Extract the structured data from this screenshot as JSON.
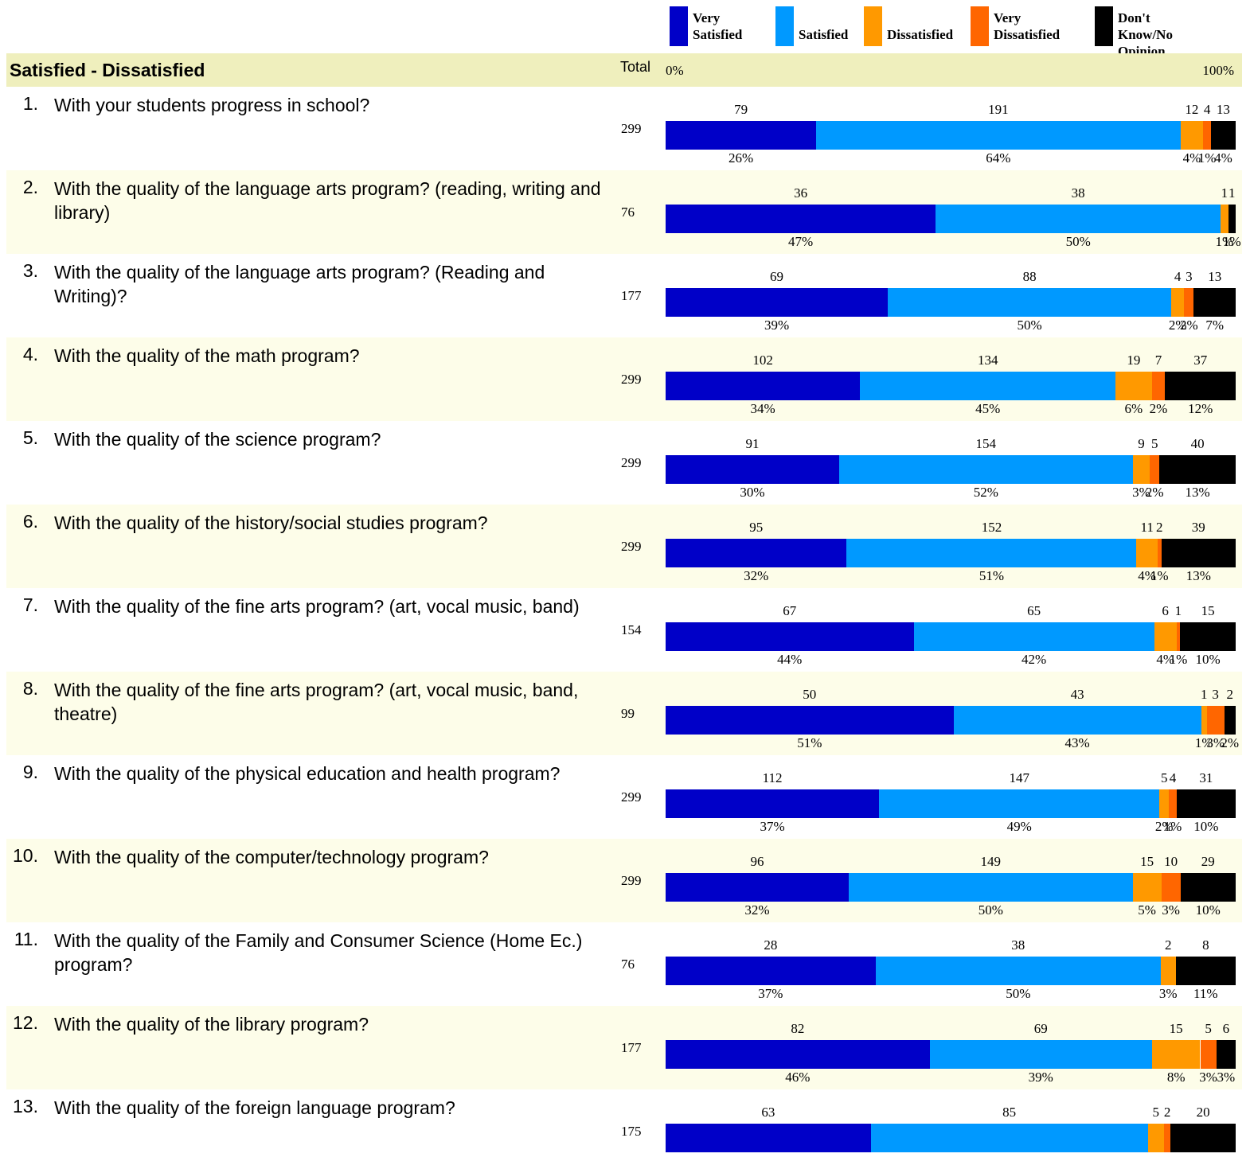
{
  "legend": [
    {
      "label": "Very\nSatisfied",
      "color": "#0000c8"
    },
    {
      "label": "Satisfied",
      "color": "#0099ff"
    },
    {
      "label": "Dissatisfied",
      "color": "#ff9900"
    },
    {
      "label": "Very\nDissatisfied",
      "color": "#ff6600"
    },
    {
      "label": "Don't Know/No\nOpinion",
      "color": "#000000"
    }
  ],
  "header": {
    "section_title": "Satisfied - Dissatisfied",
    "total_label": "Total",
    "axis_min": "0%",
    "axis_max": "100%"
  },
  "chart_data": {
    "type": "bar",
    "orientation": "horizontal",
    "stacked": "percent",
    "title": "Satisfied - Dissatisfied",
    "xlim": [
      0,
      100
    ],
    "series": [
      {
        "name": "Very Satisfied",
        "color": "#0000c8"
      },
      {
        "name": "Satisfied",
        "color": "#0099ff"
      },
      {
        "name": "Dissatisfied",
        "color": "#ff9900"
      },
      {
        "name": "Very Dissatisfied",
        "color": "#ff6600"
      },
      {
        "name": "Don't Know/No Opinion",
        "color": "#000000"
      }
    ],
    "rows": [
      {
        "num": "1.",
        "question": "With your students progress in school?",
        "total": "299",
        "counts": [
          79,
          191,
          12,
          4,
          13
        ],
        "percents": [
          "26%",
          "64%",
          "4%",
          "1%",
          "4%"
        ]
      },
      {
        "num": "2.",
        "question": "With the quality of the language arts program? (reading, writing and library)",
        "total": "76",
        "counts": [
          36,
          38,
          1,
          0,
          1
        ],
        "percents": [
          "47%",
          "50%",
          "1%",
          "",
          "1%"
        ]
      },
      {
        "num": "3.",
        "question": "With the quality of the language arts program? (Reading and Writing)?",
        "total": "177",
        "counts": [
          69,
          88,
          4,
          3,
          13
        ],
        "percents": [
          "39%",
          "50%",
          "2%",
          "2%",
          "7%"
        ]
      },
      {
        "num": "4.",
        "question": "With the quality of the math program?",
        "total": "299",
        "counts": [
          102,
          134,
          19,
          7,
          37
        ],
        "percents": [
          "34%",
          "45%",
          "6%",
          "2%",
          "12%"
        ]
      },
      {
        "num": "5.",
        "question": "With the quality of the science program?",
        "total": "299",
        "counts": [
          91,
          154,
          9,
          5,
          40
        ],
        "percents": [
          "30%",
          "52%",
          "3%",
          "2%",
          "13%"
        ]
      },
      {
        "num": "6.",
        "question": "With the quality of the history/social studies program?",
        "total": "299",
        "counts": [
          95,
          152,
          11,
          2,
          39
        ],
        "percents": [
          "32%",
          "51%",
          "4%",
          "1%",
          "13%"
        ]
      },
      {
        "num": "7.",
        "question": "With the quality of the fine arts program? (art, vocal music, band)",
        "total": "154",
        "counts": [
          67,
          65,
          6,
          1,
          15
        ],
        "percents": [
          "44%",
          "42%",
          "4%",
          "1%",
          "10%"
        ]
      },
      {
        "num": "8.",
        "question": "With the quality of the fine arts program? (art, vocal music, band, theatre)",
        "total": "99",
        "counts": [
          50,
          43,
          1,
          3,
          2
        ],
        "percents": [
          "51%",
          "43%",
          "1%",
          "3%",
          "2%"
        ]
      },
      {
        "num": "9.",
        "question": "With the quality of the physical education and health program?",
        "total": "299",
        "counts": [
          112,
          147,
          5,
          4,
          31
        ],
        "percents": [
          "37%",
          "49%",
          "2%",
          "1%",
          "10%"
        ]
      },
      {
        "num": "10.",
        "question": "With the quality of the computer/technology program?",
        "total": "299",
        "counts": [
          96,
          149,
          15,
          10,
          29
        ],
        "percents": [
          "32%",
          "50%",
          "5%",
          "3%",
          "10%"
        ]
      },
      {
        "num": "11.",
        "question": "With the quality of the Family and Consumer Science (Home Ec.) program?",
        "total": "76",
        "counts": [
          28,
          38,
          2,
          0,
          8
        ],
        "percents": [
          "37%",
          "50%",
          "3%",
          "",
          "11%"
        ]
      },
      {
        "num": "12.",
        "question": "With the quality of the library program?",
        "total": "177",
        "counts": [
          82,
          69,
          15,
          5,
          6
        ],
        "percents": [
          "46%",
          "39%",
          "8%",
          "3%",
          "3%"
        ]
      },
      {
        "num": "13.",
        "question": "With the quality of the foreign language program?",
        "total": "175",
        "counts": [
          63,
          85,
          5,
          2,
          20
        ],
        "percents": [
          "",
          "",
          "",
          "",
          ""
        ]
      }
    ]
  }
}
